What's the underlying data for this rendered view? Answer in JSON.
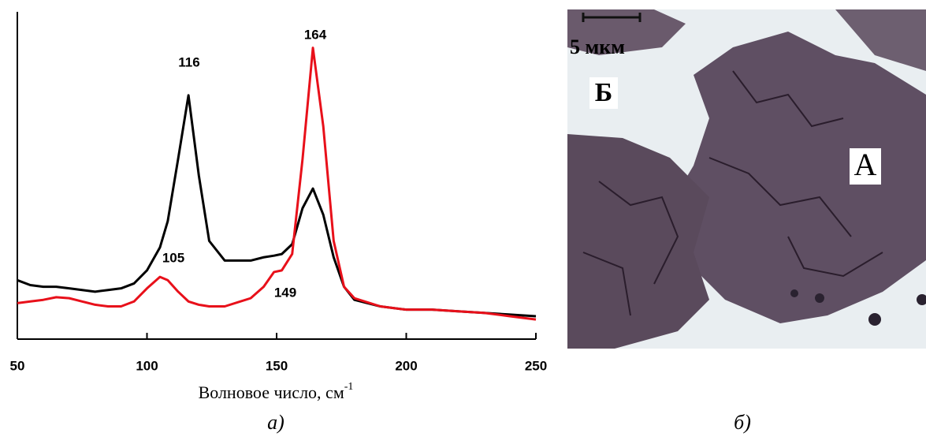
{
  "chart_data": {
    "type": "line",
    "xlabel": "Волновое число, см",
    "xlabel_superscript": "-1",
    "x": [
      50,
      55,
      60,
      65,
      70,
      75,
      80,
      85,
      90,
      95,
      100,
      105,
      108,
      112,
      116,
      120,
      124,
      130,
      140,
      145,
      149,
      152,
      156,
      160,
      164,
      168,
      172,
      176,
      180,
      190,
      200,
      210,
      220,
      230,
      240,
      250
    ],
    "series": [
      {
        "color": "#000000",
        "values": [
          18,
          16.5,
          16,
          16,
          15.5,
          15,
          14.5,
          15,
          15.5,
          17,
          21,
          28,
          36,
          55,
          74.5,
          50,
          30,
          24,
          24,
          25,
          25.5,
          26,
          29,
          40,
          46,
          38,
          25,
          16,
          12,
          10,
          9,
          9,
          8.5,
          8,
          7.5,
          7
        ]
      },
      {
        "color": "#e8101a",
        "values": [
          11,
          11.5,
          12,
          12.8,
          12.5,
          11.5,
          10.5,
          10,
          10,
          11.5,
          15.5,
          19,
          18,
          14.5,
          11.5,
          10.5,
          10,
          10,
          12.5,
          16,
          20.5,
          21,
          26,
          55,
          89,
          65,
          30,
          16,
          12.5,
          10,
          9,
          9,
          8.5,
          8,
          7,
          6
        ]
      }
    ],
    "annotations": [
      "116",
      "164",
      "105",
      "149"
    ],
    "xlim": [
      50,
      250
    ],
    "xticks": [
      50,
      100,
      150,
      200,
      250
    ],
    "ylim": [
      0,
      100
    ]
  },
  "figure": {
    "caption_a": "а)",
    "caption_b": "б)",
    "scale_bar": "5 мкм",
    "label_b": "Б",
    "label_a": "А"
  }
}
